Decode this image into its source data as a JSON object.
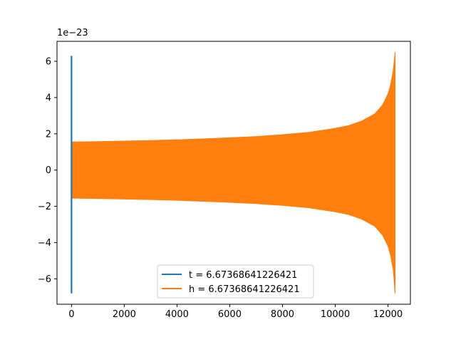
{
  "chart_data": {
    "type": "line",
    "title": "",
    "xlabel": "",
    "ylabel": "",
    "y_offset_text": "1e−23",
    "xlim": [
      -550,
      12850
    ],
    "ylim": [
      -7.4,
      7.1
    ],
    "x_ticks": [
      0,
      2000,
      4000,
      6000,
      8000,
      10000,
      12000
    ],
    "x_tick_labels": [
      "0",
      "2000",
      "4000",
      "6000",
      "8000",
      "10000",
      "12000"
    ],
    "y_ticks": [
      -6,
      -4,
      -2,
      0,
      2,
      4,
      6
    ],
    "y_tick_labels": [
      "−6",
      "−4",
      "−2",
      "0",
      "2",
      "4",
      "6"
    ],
    "grid": false,
    "legend_position": "lower center",
    "series": [
      {
        "name": "t = 6.67368641226421",
        "color": "#1f77b4",
        "description_points": {
          "x": [
            0,
            0,
            0,
            0,
            0
          ],
          "y": [
            6.3,
            -6.8,
            2.4,
            -0.5,
            1.6
          ]
        }
      },
      {
        "name": "h = 6.67368641226421",
        "color": "#ff7f0e",
        "envelope": {
          "x": [
            0,
            1000,
            2000,
            3000,
            4000,
            5000,
            6000,
            7000,
            8000,
            9000,
            10000,
            10500,
            11000,
            11500,
            11800,
            12000,
            12100,
            12200,
            12250,
            12270
          ],
          "upper": [
            1.55,
            1.57,
            1.6,
            1.63,
            1.67,
            1.72,
            1.78,
            1.85,
            1.95,
            2.08,
            2.3,
            2.45,
            2.7,
            3.1,
            3.6,
            4.2,
            4.7,
            5.5,
            6.2,
            6.5
          ],
          "lower": [
            -1.55,
            -1.57,
            -1.6,
            -1.63,
            -1.67,
            -1.72,
            -1.78,
            -1.85,
            -1.95,
            -2.08,
            -2.3,
            -2.45,
            -2.7,
            -3.1,
            -3.6,
            -4.2,
            -4.7,
            -5.5,
            -6.4,
            -6.8
          ]
        }
      }
    ]
  }
}
